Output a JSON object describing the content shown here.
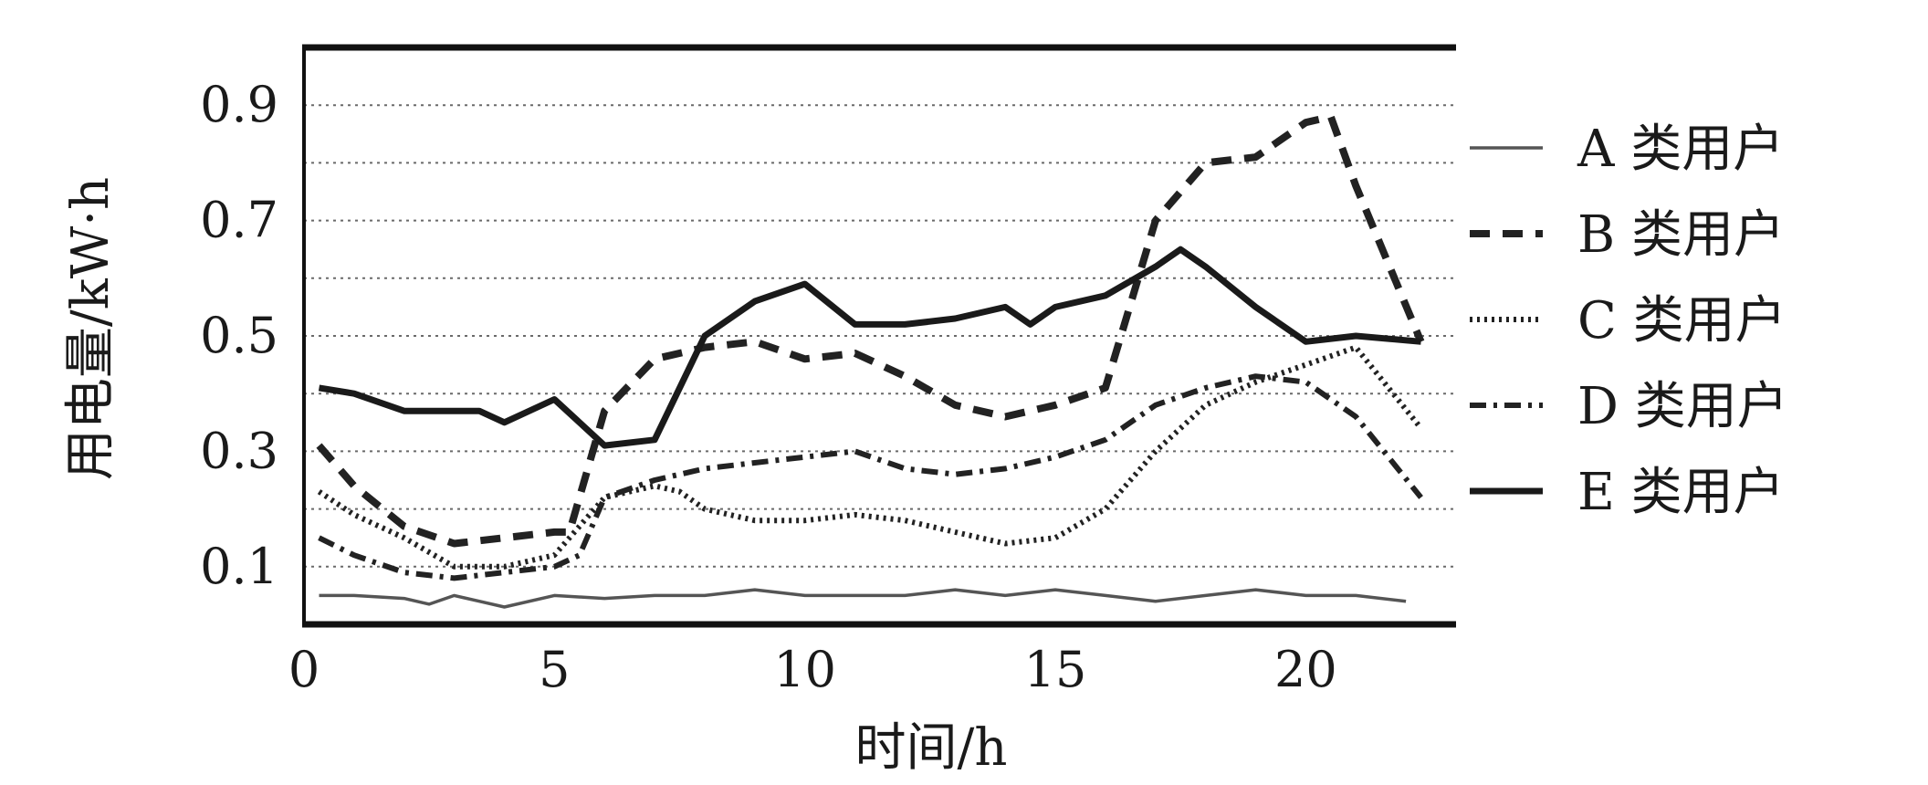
{
  "chart_data": {
    "type": "line",
    "xlabel": "时间/h",
    "ylabel": "用电量/kW·h",
    "xlim": [
      0,
      23
    ],
    "ylim": [
      0,
      1.0
    ],
    "x_ticks": [
      "0",
      "5",
      "10",
      "15",
      "20"
    ],
    "y_ticks": [
      "0.1",
      "0.3",
      "0.5",
      "0.7",
      "0.9"
    ],
    "grid": "horizontal dotted",
    "legend_position": "right",
    "series": [
      {
        "name": "A 类用户",
        "style": "thin-solid",
        "color": "#555555",
        "x": [
          0.3,
          1,
          2,
          2.5,
          3,
          3.5,
          4,
          5,
          6,
          7,
          8,
          9,
          10,
          11,
          12,
          13,
          14,
          15,
          16,
          17,
          18,
          19,
          20,
          21,
          22
        ],
        "y": [
          0.05,
          0.05,
          0.045,
          0.035,
          0.05,
          0.04,
          0.03,
          0.05,
          0.045,
          0.05,
          0.05,
          0.06,
          0.05,
          0.05,
          0.05,
          0.06,
          0.05,
          0.06,
          0.05,
          0.04,
          0.05,
          0.06,
          0.05,
          0.05,
          0.04
        ]
      },
      {
        "name": "B 类用户",
        "style": "bold-dash",
        "color": "#222222",
        "x": [
          0.3,
          1,
          2,
          3,
          4,
          5,
          5.3,
          6,
          7,
          8,
          9,
          10,
          11,
          12,
          13,
          14,
          15,
          16,
          17,
          18,
          19,
          20,
          20.5,
          21,
          22.3
        ],
        "y": [
          0.31,
          0.24,
          0.17,
          0.14,
          0.15,
          0.16,
          0.16,
          0.37,
          0.46,
          0.48,
          0.49,
          0.46,
          0.47,
          0.43,
          0.38,
          0.36,
          0.38,
          0.41,
          0.7,
          0.8,
          0.81,
          0.87,
          0.88,
          0.76,
          0.49
        ]
      },
      {
        "name": "C 类用户",
        "style": "dotted",
        "color": "#222222",
        "x": [
          0.3,
          1,
          2,
          3,
          4,
          5,
          6,
          7,
          7.5,
          8,
          9,
          10,
          11,
          12,
          13,
          14,
          15,
          16,
          17,
          18,
          19,
          20,
          21,
          22.3
        ],
        "y": [
          0.23,
          0.19,
          0.15,
          0.1,
          0.1,
          0.12,
          0.22,
          0.24,
          0.23,
          0.2,
          0.18,
          0.18,
          0.19,
          0.18,
          0.16,
          0.14,
          0.15,
          0.2,
          0.3,
          0.38,
          0.42,
          0.45,
          0.48,
          0.34
        ]
      },
      {
        "name": "D 类用户",
        "style": "dash-dot",
        "color": "#222222",
        "x": [
          0.3,
          1,
          2,
          3,
          4,
          5,
          5.5,
          6,
          7,
          8,
          9,
          10,
          11,
          12,
          13,
          14,
          15,
          16,
          17,
          18,
          19,
          20,
          21,
          22.3
        ],
        "y": [
          0.15,
          0.12,
          0.09,
          0.08,
          0.09,
          0.1,
          0.12,
          0.22,
          0.25,
          0.27,
          0.28,
          0.29,
          0.3,
          0.27,
          0.26,
          0.27,
          0.29,
          0.32,
          0.38,
          0.41,
          0.43,
          0.42,
          0.36,
          0.22
        ]
      },
      {
        "name": "E 类用户",
        "style": "bold-solid",
        "color": "#1a1a1a",
        "x": [
          0.3,
          1,
          2,
          3,
          3.5,
          4,
          5,
          5.5,
          6,
          7,
          8,
          9,
          10,
          11,
          12,
          13,
          14,
          14.5,
          15,
          16,
          17,
          17.5,
          18,
          19,
          20,
          21,
          22.3
        ],
        "y": [
          0.41,
          0.4,
          0.37,
          0.37,
          0.37,
          0.35,
          0.39,
          0.35,
          0.31,
          0.32,
          0.5,
          0.56,
          0.59,
          0.52,
          0.52,
          0.53,
          0.55,
          0.52,
          0.55,
          0.57,
          0.62,
          0.65,
          0.62,
          0.55,
          0.49,
          0.5,
          0.49
        ]
      }
    ]
  }
}
